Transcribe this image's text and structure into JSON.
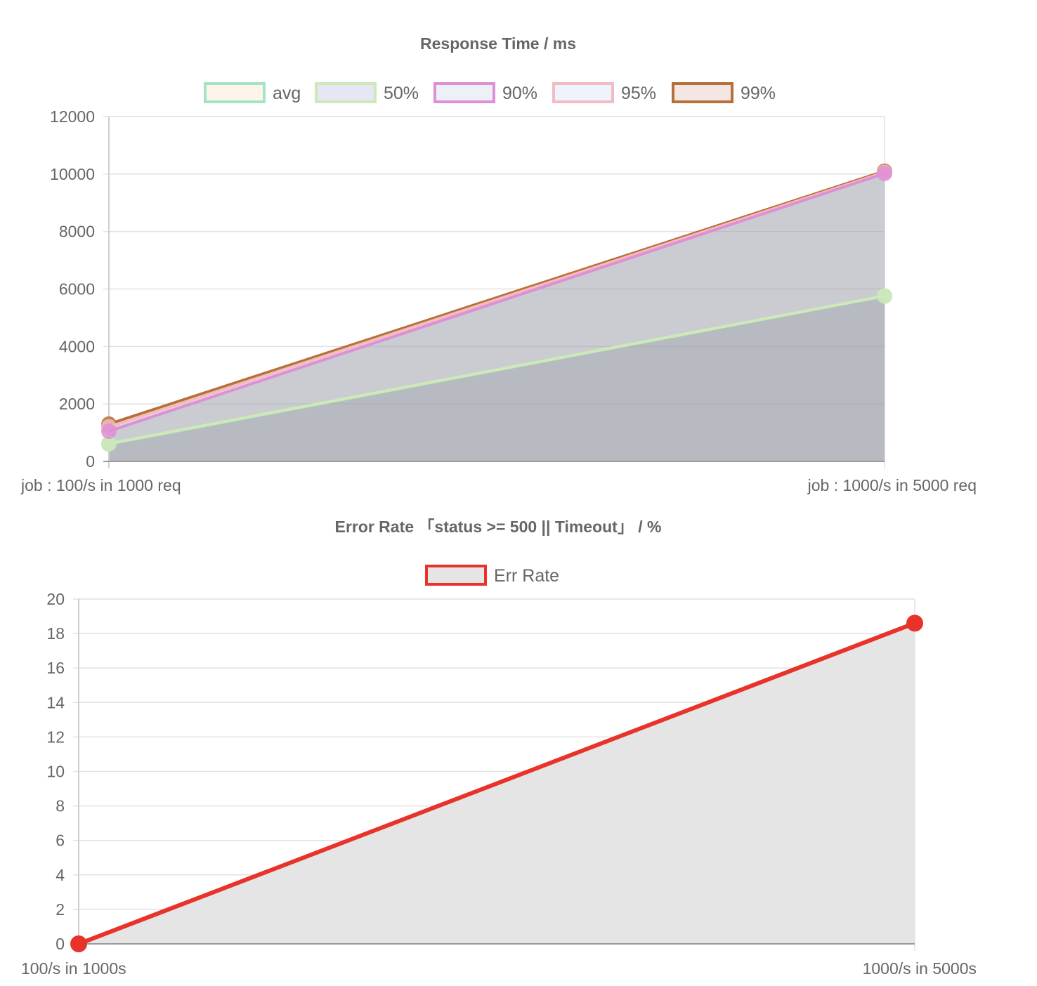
{
  "chart_data": [
    {
      "type": "line",
      "title": "Response Time / ms",
      "categories": [
        "job : 100/s in 1000 req",
        "job : 1000/s in 5000 req"
      ],
      "ylim": [
        0,
        12000
      ],
      "yticks": [
        0,
        2000,
        4000,
        6000,
        8000,
        10000,
        12000
      ],
      "grid": true,
      "legend_position": "top-center",
      "series": [
        {
          "name": "avg",
          "values": [
            600,
            5750
          ],
          "stroke": "#a5e3c4",
          "fill": "#fdf5ea"
        },
        {
          "name": "50%",
          "values": [
            620,
            5760
          ],
          "stroke": "#cfe8b8",
          "fill": "#e6e6f5"
        },
        {
          "name": "90%",
          "values": [
            1050,
            10020
          ],
          "stroke": "#de8fd6",
          "fill": "#ebf1f7"
        },
        {
          "name": "95%",
          "values": [
            1200,
            10060
          ],
          "stroke": "#f2bcc0",
          "fill": "#eef4fb"
        },
        {
          "name": "99%",
          "values": [
            1300,
            10100
          ],
          "stroke": "#b8703a",
          "fill": "#f4e7e3"
        }
      ]
    },
    {
      "type": "area",
      "title": "Error Rate 「status >= 500 || Timeout」 / %",
      "categories": [
        "100/s in 1000s",
        "1000/s in 5000s"
      ],
      "ylim": [
        0,
        20
      ],
      "yticks": [
        0,
        2,
        4,
        6,
        8,
        10,
        12,
        14,
        16,
        18,
        20
      ],
      "grid": true,
      "legend_position": "top-center",
      "series": [
        {
          "name": "Err Rate",
          "values": [
            0,
            18.6
          ],
          "stroke": "#e8332a",
          "fill": "#e5e5e5"
        }
      ]
    }
  ]
}
